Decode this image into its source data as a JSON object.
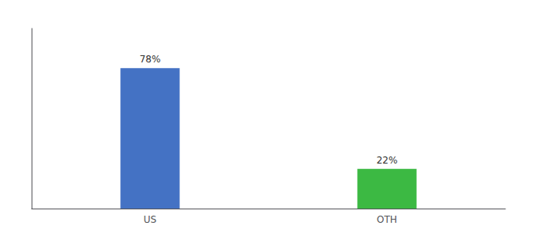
{
  "chart_data": {
    "type": "bar",
    "categories": [
      "US",
      "OTH"
    ],
    "values": [
      78,
      22
    ],
    "value_labels": [
      "78%",
      "22%"
    ],
    "colors": [
      "#4472C4",
      "#3CB943"
    ],
    "ylim": [
      0,
      100
    ],
    "grid": false,
    "data_labels": true,
    "tick_labels": "x"
  }
}
